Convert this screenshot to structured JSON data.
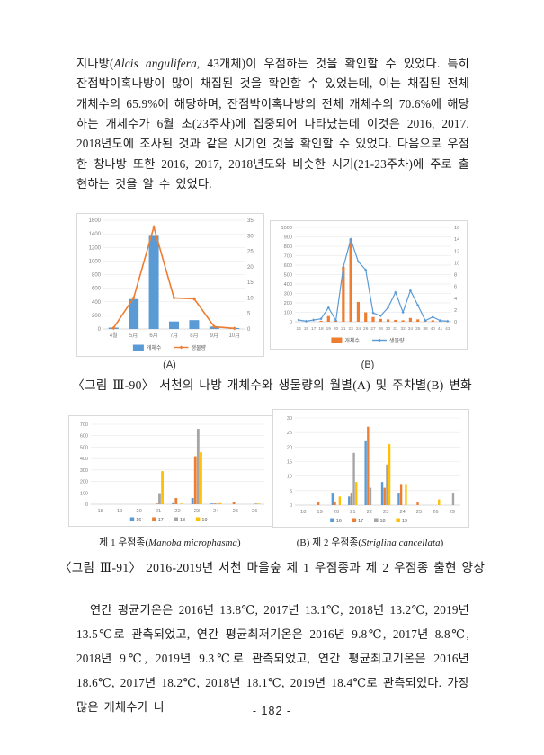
{
  "paragraph_top": {
    "seg1": "지나방(",
    "species_italic": "Alcis angulifera",
    "seg2": ", 43개체)이 우점하는 것을 확인할 수 있었다. 특히 잔점박이혹나방이 많이 채집된 것을 확인할 수 있었는데, 이는 채집된 전체 개체수의 65.9%에 해당하며, 잔점박이혹나방의 전체 개체수의 70.6%에 해당하는 개체수가 6월 초(23주차)에 집중되어 나타났는데 이것은 2016, 2017, 2018년도에 조사된 것과 같은 시기인 것을 확인할 수 있었다. 다음으로 우점한 창나방 또한 2016, 2017, 2018년도와 비슷한 시기(21-23주차)에 주로 출현하는 것을 알 수 있었다."
  },
  "figure_90": {
    "panel_a_label": "(A)",
    "panel_b_label": "(B)",
    "caption": "〈그림 Ⅲ-90〉 서천의 나방 개체수와 생물량의 월별(A) 및 주차별(B) 변화"
  },
  "figure_91": {
    "subcap_a_prefix": "제 1 우점종(",
    "subcap_a_species": "Manoba microphasma",
    "subcap_a_suffix": ")",
    "subcap_b_prefix": "(B) 제 2 우점종(",
    "subcap_b_species": "Striglina cancellata",
    "subcap_b_suffix": ")",
    "caption": "〈그림 Ⅲ-91〉 2016-2019년 서천 마을숲 제 1 우점종과 제 2 우점종 출현 양상"
  },
  "paragraph_bottom": "연간 평균기온은 2016년 13.8℃, 2017년 13.1℃, 2018년 13.2℃, 2019년 13.5℃로 관측되었고, 연간 평균최저기온은 2016년 9.8℃, 2017년 8.8℃, 2018년 9℃, 2019년 9.3℃로 관측되었고, 연간 평균최고기온은 2016년 18.6℃, 2017년 18.2℃, 2018년 18.1℃, 2019년 18.4℃로 관측되었다. 가장 많은 개체수가 나",
  "footer": {
    "page_number": "- 182 -"
  },
  "colors": {
    "series_blue": "#5B9BD5",
    "series_orange": "#ED7D31",
    "series_gray": "#A5A5A5",
    "series_yellow": "#FFC000",
    "axis_text": "#7f7f7f",
    "gridline": "#e4e4e4"
  },
  "chart_data": [
    {
      "type": "bar-line",
      "panel": "A-monthly",
      "categories": [
        "4월",
        "5月",
        "6月",
        "7月",
        "8月",
        "9月",
        "10月"
      ],
      "bar_series": {
        "name": "개체수",
        "color": "#5B9BD5",
        "values": [
          20,
          440,
          1370,
          110,
          130,
          35,
          5
        ]
      },
      "line_series": {
        "name": "생물량",
        "color": "#ED7D31",
        "values": [
          0.3,
          10,
          32.8,
          10,
          9.7,
          0.7,
          0.2
        ]
      },
      "y_left": {
        "min": 0,
        "max": 1600,
        "step": 200
      },
      "y_right": {
        "min": 0,
        "max": 35,
        "step": 5
      },
      "legend_position": "bottom",
      "grid": true
    },
    {
      "type": "bar-line",
      "panel": "B-weekly",
      "categories": [
        "14",
        "15",
        "17",
        "18",
        "19",
        "20",
        "21",
        "23",
        "24",
        "26",
        "27",
        "28",
        "30",
        "31",
        "32",
        "34",
        "35",
        "38",
        "40",
        "41",
        "43"
      ],
      "bar_series": {
        "name": "개체수",
        "color": "#ED7D31",
        "values": [
          0,
          0,
          0,
          10,
          60,
          10,
          580,
          880,
          210,
          100,
          50,
          30,
          25,
          20,
          15,
          40,
          25,
          5,
          15,
          5,
          5
        ]
      },
      "line_series": {
        "name": "생물량",
        "color": "#5B9BD5",
        "values": [
          0.3,
          0.1,
          0.3,
          0.5,
          2.4,
          0.2,
          9.3,
          14,
          10.2,
          8.8,
          1.5,
          1,
          2.4,
          5,
          1.6,
          5.3,
          2.8,
          0.2,
          0.8,
          0.2,
          0.1
        ]
      },
      "y_left": {
        "min": 0,
        "max": 1000,
        "step": 100
      },
      "y_right": {
        "min": 0,
        "max": 16,
        "step": 2
      },
      "legend_position": "bottom",
      "grid": true
    },
    {
      "type": "grouped-bar",
      "panel": "dominant-species-1",
      "categories": [
        "18",
        "19",
        "20",
        "21",
        "22",
        "23",
        "24",
        "25",
        "26"
      ],
      "series": [
        {
          "name": "16",
          "color": "#5B9BD5",
          "values": [
            0,
            0,
            0,
            0,
            10,
            55,
            5,
            0,
            0
          ]
        },
        {
          "name": "17",
          "color": "#ED7D31",
          "values": [
            0,
            0,
            0,
            5,
            55,
            420,
            5,
            20,
            0
          ]
        },
        {
          "name": "18",
          "color": "#A5A5A5",
          "values": [
            0,
            0,
            0,
            90,
            0,
            660,
            2,
            0,
            5
          ]
        },
        {
          "name": "19",
          "color": "#FFC000",
          "values": [
            0,
            0,
            0,
            290,
            5,
            455,
            10,
            0,
            3
          ]
        }
      ],
      "y": {
        "min": 0,
        "max": 700,
        "step": 100
      },
      "legend_position": "bottom",
      "grid": true
    },
    {
      "type": "grouped-bar",
      "panel": "dominant-species-2",
      "categories": [
        "18",
        "19",
        "20",
        "21",
        "22",
        "23",
        "24",
        "25",
        "26",
        "29"
      ],
      "series": [
        {
          "name": "16",
          "color": "#5B9BD5",
          "values": [
            0,
            0,
            4,
            3,
            22,
            8,
            4,
            0,
            0,
            0
          ]
        },
        {
          "name": "17",
          "color": "#ED7D31",
          "values": [
            0,
            1,
            1,
            4,
            27,
            6,
            7,
            1,
            0,
            0
          ]
        },
        {
          "name": "18",
          "color": "#A5A5A5",
          "values": [
            0,
            0,
            0,
            18,
            6,
            14,
            0,
            0,
            0,
            4
          ]
        },
        {
          "name": "19",
          "color": "#FFC000",
          "values": [
            0,
            0,
            3,
            8,
            0,
            21,
            7,
            0,
            2,
            0
          ]
        }
      ],
      "y": {
        "min": 0,
        "max": 30,
        "step": 5
      },
      "legend_position": "bottom",
      "grid": true
    }
  ]
}
